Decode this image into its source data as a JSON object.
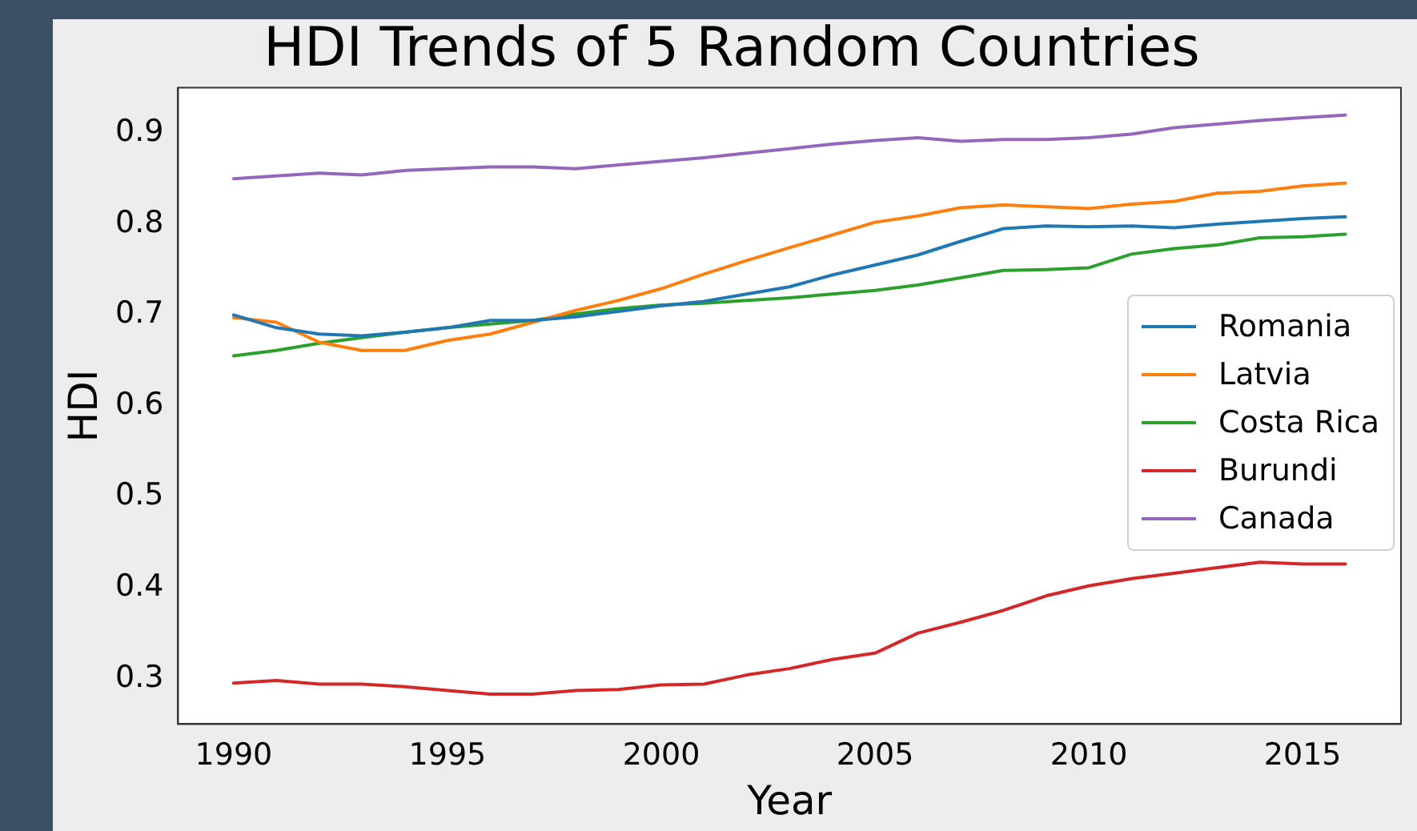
{
  "chart_data": {
    "type": "line",
    "title": "HDI Trends of 5 Random Countries",
    "xlabel": "Year",
    "ylabel": "HDI",
    "x": [
      1990,
      1991,
      1992,
      1993,
      1994,
      1995,
      1996,
      1997,
      1998,
      1999,
      2000,
      2001,
      2002,
      2003,
      2004,
      2005,
      2006,
      2007,
      2008,
      2009,
      2010,
      2011,
      2012,
      2013,
      2014,
      2015,
      2016
    ],
    "series": [
      {
        "name": "Romania",
        "color": "#1f77b4",
        "values": [
          0.7,
          0.686,
          0.679,
          0.677,
          0.681,
          0.686,
          0.694,
          0.694,
          0.698,
          0.704,
          0.71,
          0.715,
          0.723,
          0.731,
          0.744,
          0.755,
          0.766,
          0.781,
          0.795,
          0.798,
          0.797,
          0.798,
          0.796,
          0.8,
          0.803,
          0.806,
          0.808
        ]
      },
      {
        "name": "Latvia",
        "color": "#ff7f0e",
        "values": [
          0.697,
          0.692,
          0.67,
          0.661,
          0.661,
          0.672,
          0.679,
          0.692,
          0.705,
          0.716,
          0.729,
          0.745,
          0.76,
          0.774,
          0.788,
          0.802,
          0.809,
          0.818,
          0.821,
          0.819,
          0.817,
          0.822,
          0.825,
          0.834,
          0.836,
          0.842,
          0.845
        ]
      },
      {
        "name": "Costa Rica",
        "color": "#2ca02c",
        "values": [
          0.655,
          0.661,
          0.669,
          0.675,
          0.681,
          0.686,
          0.69,
          0.694,
          0.701,
          0.707,
          0.711,
          0.713,
          0.716,
          0.719,
          0.723,
          0.727,
          0.733,
          0.741,
          0.749,
          0.75,
          0.752,
          0.767,
          0.773,
          0.777,
          0.785,
          0.786,
          0.789
        ]
      },
      {
        "name": "Burundi",
        "color": "#d62728",
        "values": [
          0.295,
          0.298,
          0.294,
          0.294,
          0.291,
          0.287,
          0.283,
          0.283,
          0.287,
          0.288,
          0.293,
          0.294,
          0.304,
          0.311,
          0.321,
          0.328,
          0.35,
          0.362,
          0.375,
          0.391,
          0.402,
          0.41,
          0.416,
          0.422,
          0.428,
          0.426,
          0.426
        ]
      },
      {
        "name": "Canada",
        "color": "#9467bd",
        "values": [
          0.85,
          0.853,
          0.856,
          0.854,
          0.859,
          0.861,
          0.863,
          0.863,
          0.861,
          0.865,
          0.869,
          0.873,
          0.878,
          0.883,
          0.888,
          0.892,
          0.895,
          0.891,
          0.893,
          0.893,
          0.895,
          0.899,
          0.906,
          0.91,
          0.914,
          0.917,
          0.92
        ]
      }
    ],
    "xlim": [
      1988.7,
      2017.3
    ],
    "xticks": [
      1990,
      1995,
      2000,
      2005,
      2010,
      2015
    ],
    "ylim": [
      0.25,
      0.95
    ],
    "yticks": [
      0.3,
      0.4,
      0.5,
      0.6,
      0.7,
      0.8,
      0.9
    ],
    "grid": false,
    "legend": "right",
    "marker": "none",
    "line_style": "solid"
  }
}
